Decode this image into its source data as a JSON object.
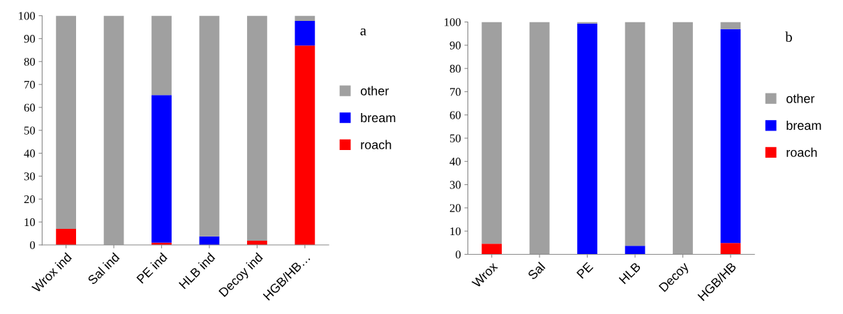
{
  "chart_data": [
    {
      "type": "bar",
      "stacked": true,
      "categories": [
        "Wrox ind",
        "Sal ind",
        "PE ind",
        "HLB ind",
        "Decoy ind",
        "HGB/HB…"
      ],
      "series": [
        {
          "name": "roach",
          "color": "#ff0000",
          "values": [
            7.0,
            0,
            1.0,
            0,
            1.8,
            87.0
          ]
        },
        {
          "name": "bream",
          "color": "#0000ff",
          "values": [
            0,
            0,
            64.4,
            3.7,
            0,
            10.7
          ]
        },
        {
          "name": "other",
          "color": "#a0a0a0",
          "values": [
            93.0,
            100,
            34.6,
            96.3,
            98.2,
            2.3
          ]
        }
      ],
      "ylim": [
        0,
        100
      ],
      "yticks": [
        0,
        10,
        20,
        30,
        40,
        50,
        60,
        70,
        80,
        90,
        100
      ],
      "grid": false,
      "legend": "right",
      "annotations": [
        "a"
      ]
    },
    {
      "type": "bar",
      "stacked": true,
      "categories": [
        "Wrox",
        "Sal",
        "PE",
        "HLB",
        "Decoy",
        "HGB/HB"
      ],
      "series": [
        {
          "name": "roach",
          "color": "#ff0000",
          "values": [
            4.6,
            0,
            0,
            0,
            0,
            4.9
          ]
        },
        {
          "name": "bream",
          "color": "#0000ff",
          "values": [
            0,
            0,
            99.3,
            3.7,
            0,
            92.0
          ]
        },
        {
          "name": "other",
          "color": "#a0a0a0",
          "values": [
            95.4,
            100,
            0.7,
            96.3,
            100,
            3.1
          ]
        }
      ],
      "ylim": [
        0,
        100
      ],
      "yticks": [
        0,
        10,
        20,
        30,
        40,
        50,
        60,
        70,
        80,
        90,
        100
      ],
      "grid": false,
      "legend": "right",
      "annotations": [
        "b"
      ]
    }
  ]
}
